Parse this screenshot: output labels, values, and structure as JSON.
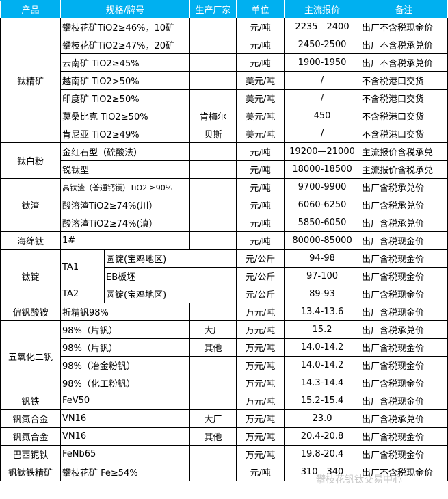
{
  "header": [
    "产品",
    "规格/牌号",
    "生产厂家",
    "单位",
    "主流报价",
    "备注"
  ],
  "groups": [
    {
      "product": "钛精矿",
      "rows": [
        {
          "spec": "攀枝花矿TiO2≥46%，10矿",
          "maker": "",
          "unit": "元/吨",
          "price": "2235—2400",
          "note": "出厂不含税现金价"
        },
        {
          "spec": "攀枝花矿TiO2≥47%，20矿",
          "maker": "",
          "unit": "元/吨",
          "price": "2450-2500",
          "note": "出厂不含税承兑价"
        },
        {
          "spec": "云南矿 TiO2≥45%",
          "maker": "",
          "unit": "元/吨",
          "price": "1900-1950",
          "note": "出厂不含税承兑价"
        },
        {
          "spec": "越南矿 TiO2>50%",
          "maker": "",
          "unit": "美元/吨",
          "price": "/",
          "note": "不含税港口交货"
        },
        {
          "spec": "印度矿 TiO2≥50%",
          "maker": "",
          "unit": "美元/吨",
          "price": "/",
          "note": "不含税港口交货"
        },
        {
          "spec": "莫桑比克 TiO2≥50%",
          "maker": "肯梅尔",
          "unit": "美元/吨",
          "price": "450",
          "note": "不含税港口交货"
        },
        {
          "spec": "肯尼亚 TiO2≥49%",
          "maker": "贝斯",
          "unit": "美元/吨",
          "price": "/",
          "note": "不含税港口交货"
        }
      ]
    },
    {
      "product": "钛白粉",
      "rows": [
        {
          "spec": "金红石型（硫酸法）",
          "maker": "",
          "unit": "元/吨",
          "price": "19200—21000",
          "note": "主流报价含税承兑"
        },
        {
          "spec": "锐钛型",
          "maker": "",
          "unit": "元/吨",
          "price": "18000-18500",
          "note": "主流报价含税承兑"
        }
      ]
    },
    {
      "product": "钛渣",
      "rows": [
        {
          "spec": "高钛渣（普通钙镁）TiO2 ≥90%",
          "maker": "",
          "unit": "元/吨",
          "price": "9700-9900",
          "note": "出厂含税承兑价",
          "small": true
        },
        {
          "spec": "酸溶渣TiO2≥74%(川）",
          "maker": "",
          "unit": "元/吨",
          "price": "6060-6250",
          "note": "出厂含税承兑价"
        },
        {
          "spec": "酸溶渣TiO2≥74%(滇）",
          "maker": "",
          "unit": "元/吨",
          "price": "5850-6050",
          "note": "出厂含税承兑价"
        }
      ]
    },
    {
      "product": "海绵钛",
      "rows": [
        {
          "spec": "1#",
          "maker": "",
          "unit": "元/吨",
          "price": "80000-85000",
          "note": "出厂含税现金价"
        }
      ]
    },
    {
      "product": "钛锭",
      "rows": [
        {
          "grade": "TA1",
          "spec": "圆锭(宝鸡地区)",
          "unit": "元/公斤",
          "price": "94-98",
          "note": "出厂含税现金价"
        },
        {
          "grade": "TA1",
          "spec": "EB板坯",
          "unit": "元/公斤",
          "price": "97-100",
          "note": "出厂含税现金价"
        },
        {
          "grade": "TA2",
          "spec": "圆锭(宝鸡地区)",
          "unit": "元/公斤",
          "price": "89-93",
          "note": "出厂含税现金价"
        }
      ]
    },
    {
      "product": "偏钒酸铵",
      "rows": [
        {
          "spec": "折精钒98%",
          "maker": "",
          "unit": "万元/吨",
          "price": "13.4-13.6",
          "note": "出厂含税现金价"
        }
      ]
    },
    {
      "product": "五氧化二钒",
      "rows": [
        {
          "spec": "98%（片钒）",
          "maker": "大厂",
          "unit": "万元/吨",
          "price": "15.2",
          "note": "出厂含税承兑价"
        },
        {
          "spec": "98%（片钒）",
          "maker": "其他",
          "unit": "万元/吨",
          "price": "14.0-14.2",
          "note": "出厂含税现金价"
        },
        {
          "spec": "98%（冶金粉钒）",
          "maker": "",
          "unit": "万元/吨",
          "price": "14.0-14.2",
          "note": "出厂含税现金价"
        },
        {
          "spec": "98%（化工粉钒）",
          "maker": "",
          "unit": "万元/吨",
          "price": "14.3-14.4",
          "note": "出厂含税现金价"
        }
      ]
    },
    {
      "product": "钒铁",
      "rows": [
        {
          "spec": "FeV50",
          "maker": "",
          "unit": "万元/吨",
          "price": "15.2-15.4",
          "note": "出厂含税现金价"
        }
      ]
    },
    {
      "product": "钒氮合金",
      "rows": [
        {
          "spec": "VN16",
          "maker": "大厂",
          "unit": "万元/吨",
          "price": "23.0",
          "note": "出厂含税承兑价"
        }
      ]
    },
    {
      "product": "钒氮合金",
      "rows": [
        {
          "spec": "VN16",
          "maker": "其他",
          "unit": "万元/吨",
          "price": "20.4-20.8",
          "note": "出厂含税现金价"
        }
      ]
    },
    {
      "product": "巴西铌铁",
      "rows": [
        {
          "spec": "FeNb65",
          "maker": "",
          "unit": "万元/吨",
          "price": "19.8-20.4",
          "note": "出厂含税现金价"
        }
      ]
    },
    {
      "product": "钒钛铁精矿",
      "rows": [
        {
          "spec": "攀枝花矿 Fe≥54%",
          "maker": "",
          "unit": "元/吨",
          "price": "310—340",
          "note": "出厂不含税现金价"
        }
      ]
    }
  ],
  "watermark": "攀枝花钒钛交易中心",
  "colors": {
    "header_bg": "#00b0f0",
    "header_text": "#ffffff"
  }
}
